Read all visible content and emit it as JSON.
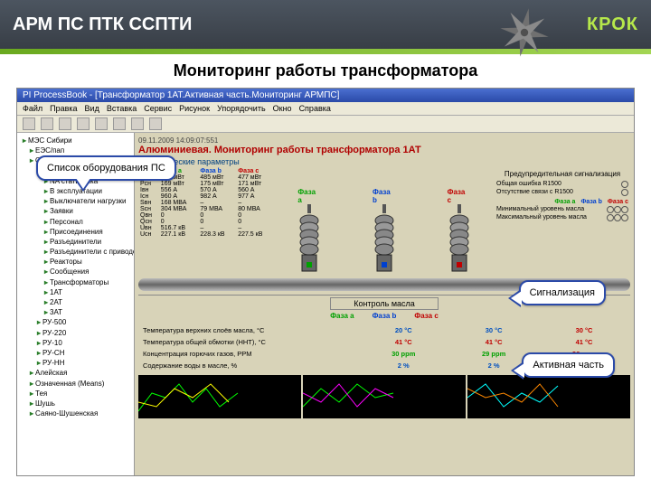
{
  "slide": {
    "title": "АРМ ПС ПТК ССПТИ",
    "logo": "КРОК",
    "subtitle": "Мониторинг работы трансформатора"
  },
  "app": {
    "window_title": "PI ProcessBook - [Трансформатор 1АТ.Активная часть.Мониторинг АРМПС]",
    "menu": [
      "Файл",
      "Правка",
      "Вид",
      "Вставка",
      "Сервис",
      "Рисунок",
      "Упорядочить",
      "Окно",
      "Справка"
    ],
    "tree_tab": "Структура",
    "tree": [
      {
        "l": 0,
        "t": "МЭС Сибири"
      },
      {
        "l": 1,
        "t": "ЕЭС/пап"
      },
      {
        "l": 1,
        "t": "ОЭС Сибири"
      },
      {
        "l": 2,
        "t": "Алюминиевая"
      },
      {
        "l": 3,
        "t": "NA статистика"
      },
      {
        "l": 3,
        "t": "В эксплуатации"
      },
      {
        "l": 3,
        "t": "Выключатели нагрузки"
      },
      {
        "l": 3,
        "t": "Заявки"
      },
      {
        "l": 3,
        "t": "Персонал"
      },
      {
        "l": 3,
        "t": "Присоединения"
      },
      {
        "l": 3,
        "t": "Разъединители"
      },
      {
        "l": 3,
        "t": "Разъединители с приводом"
      },
      {
        "l": 3,
        "t": "Реакторы"
      },
      {
        "l": 3,
        "t": "Сообщения"
      },
      {
        "l": 3,
        "t": "Трансформаторы"
      },
      {
        "l": 3,
        "t": "1АТ"
      },
      {
        "l": 3,
        "t": "2АТ"
      },
      {
        "l": 3,
        "t": "3АТ"
      },
      {
        "l": 2,
        "t": "РУ-500"
      },
      {
        "l": 2,
        "t": "РУ-220"
      },
      {
        "l": 2,
        "t": "РУ-10"
      },
      {
        "l": 2,
        "t": "РУ-СН"
      },
      {
        "l": 2,
        "t": "РУ-НН"
      },
      {
        "l": 1,
        "t": "Алейская"
      },
      {
        "l": 1,
        "t": "Означенная (Means)"
      },
      {
        "l": 1,
        "t": "Тея"
      },
      {
        "l": 1,
        "t": "Шушь"
      },
      {
        "l": 1,
        "t": "Саяно-Шушенская"
      }
    ],
    "header": "Алюминиевая. Мониторинг работы трансформатора 1АТ",
    "timestamp": "09.11.2009 14:09:07:551",
    "section1": "Электрические параметры",
    "phase_labels": [
      "Фаза a",
      "Фаза b",
      "Фаза c"
    ],
    "phase_colors": [
      "#00a000",
      "#0040d0",
      "#c00000"
    ],
    "param_rows": [
      {
        "n": "Pвн",
        "a": "473 мВт",
        "b": "485 мВт",
        "c": "477 мВт"
      },
      {
        "n": "Pсн",
        "a": "169 мВт",
        "b": "175 мВт",
        "c": "171 мВт"
      },
      {
        "n": "Iвн",
        "a": "556 А",
        "b": "570 А",
        "c": "560 А"
      },
      {
        "n": "Iсн",
        "a": "960 А",
        "b": "982 А",
        "c": "977 А"
      },
      {
        "n": "Sвн",
        "a": "168 МВА",
        "b": "–",
        "c": "–"
      },
      {
        "n": "Sсн",
        "a": "304 МВА",
        "b": "79 МВА",
        "c": "80 МВА"
      },
      {
        "n": "Qвн",
        "a": "0",
        "b": "0",
        "c": "0"
      },
      {
        "n": "Qсн",
        "a": "0",
        "b": "0",
        "c": "0"
      },
      {
        "n": "Uвн",
        "a": "516.7 кВ",
        "b": "–",
        "c": "–"
      },
      {
        "n": "Uсн",
        "a": "227.1 кВ",
        "b": "228.3 кВ",
        "c": "227.5 кВ"
      }
    ],
    "alarm_title": "Предупредительная сигнализация",
    "alarm_rows": [
      {
        "n": "Общая ошибка R1500",
        "v": "○"
      },
      {
        "n": "Отсутствие связи с R1500",
        "v": "○"
      }
    ],
    "alarm_sub_h": [
      "",
      "Фаза a",
      "Фаза b",
      "Фаза c"
    ],
    "alarm_sub": [
      {
        "n": "Минимальный уровень масла"
      },
      {
        "n": "Максимальный уровень масла"
      }
    ],
    "km_title": "Контроль масла",
    "oil_rows": [
      {
        "n": "Температура верхних слоёв масла, °С",
        "a": "20 °C",
        "b": "30 °C",
        "c": "30 °C",
        "ac": "#0050c0",
        "bc": "#0050c0",
        "cc": "#c00000"
      },
      {
        "n": "Температура общей обмотки (ННТ), °С",
        "a": "41 °C",
        "b": "41 °C",
        "c": "41 °C",
        "ac": "#c00000",
        "bc": "#c00000",
        "cc": "#c00000"
      },
      {
        "n": "Концентрация горючих газов, PPM",
        "a": "30 ppm",
        "b": "29 ppm",
        "c": "36 ppm",
        "ac": "#00a000",
        "bc": "#00a000",
        "cc": "#c00000"
      },
      {
        "n": "Содержание воды в масле, %",
        "a": "2 %",
        "b": "2 %",
        "c": "2 %",
        "ac": "#0050c0",
        "bc": "#0050c0",
        "cc": "#0050c0"
      }
    ]
  },
  "callouts": {
    "c1": "Список оборудования ПС",
    "c2": "Сигнализация",
    "c3": "Активная часть"
  },
  "colors": {
    "accent": "#6aa91f",
    "border": "#2b4aa8",
    "bg_main": "#d8d3b8"
  }
}
